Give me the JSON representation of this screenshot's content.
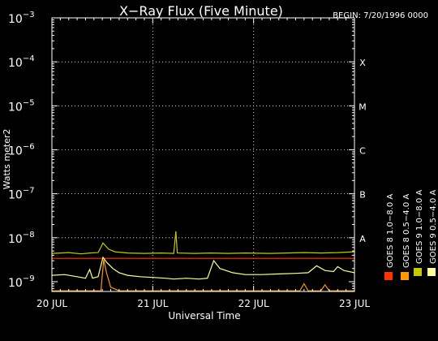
{
  "chart_data": {
    "type": "line",
    "title": "X−Ray Flux (Five Minute)",
    "begin_label": "BEGIN: 7/20/1996 0000",
    "xlabel": "Universal Time",
    "ylabel": "Watts meter2",
    "y_scale": "log",
    "ylim": [
      6e-10,
      0.001
    ],
    "xlim": [
      "1996-07-20",
      "1996-07-23"
    ],
    "x_ticks": [
      {
        "date": "1996-07-20",
        "label": "20 JUL"
      },
      {
        "date": "1996-07-21",
        "label": "21 JUL"
      },
      {
        "date": "1996-07-22",
        "label": "22 JUL"
      },
      {
        "date": "1996-07-23",
        "label": "23 JUL"
      }
    ],
    "y_ticks": [
      {
        "value": 0.001,
        "base": "10",
        "exp": "−3"
      },
      {
        "value": 0.0001,
        "base": "10",
        "exp": "−4"
      },
      {
        "value": 1e-05,
        "base": "10",
        "exp": "−5"
      },
      {
        "value": 1e-06,
        "base": "10",
        "exp": "−6"
      },
      {
        "value": 1e-07,
        "base": "10",
        "exp": "−7"
      },
      {
        "value": 1e-08,
        "base": "10",
        "exp": "−8"
      },
      {
        "value": 1e-09,
        "base": "10",
        "exp": "−9"
      }
    ],
    "flare_classes": [
      {
        "label": "X",
        "value": 0.0001
      },
      {
        "label": "M",
        "value": 1e-05
      },
      {
        "label": "C",
        "value": 1e-06
      },
      {
        "label": "B",
        "value": 1e-07
      },
      {
        "label": "A",
        "value": 1e-08
      }
    ],
    "grid": {
      "horizontal_dotted_at_class_levels": true,
      "vertical_dotted_at_days": true
    },
    "legend_position": "right-side-vertical",
    "legend": [
      {
        "label": "GOES 8  1.0−8.0 A",
        "color": "#ff3300"
      },
      {
        "label": "GOES 8  0.5−4.0 A",
        "color": "#ff9900"
      },
      {
        "label": "GOES 9  1.0−8.0 A",
        "color": "#c8c800"
      },
      {
        "label": "GOES 9  0.5−4.0 A",
        "color": "#ffff99"
      }
    ],
    "series": [
      {
        "name": "GOES 8  1.0−8.0 A",
        "color": "#ff3300",
        "points": [
          [
            "1996-07-20 00:00",
            3.4e-09
          ],
          [
            "1996-07-20 12:00",
            3.4e-09
          ],
          [
            "1996-07-21 00:00",
            3.4e-09
          ],
          [
            "1996-07-21 12:00",
            3.4e-09
          ],
          [
            "1996-07-22 00:00",
            3.4e-09
          ],
          [
            "1996-07-22 12:00",
            3.4e-09
          ],
          [
            "1996-07-23 00:00",
            3.4e-09
          ]
        ]
      },
      {
        "name": "GOES 8  0.5−4.0 A",
        "color": "#ff9900",
        "points": [
          [
            "1996-07-20 00:00",
            6.2e-10
          ],
          [
            "1996-07-20 11:40",
            6.2e-10
          ],
          [
            "1996-07-20 12:20",
            3.2e-09
          ],
          [
            "1996-07-20 13:00",
            1.6e-09
          ],
          [
            "1996-07-20 14:00",
            7.5e-10
          ],
          [
            "1996-07-20 16:00",
            6.2e-10
          ],
          [
            "1996-07-21 00:00",
            6.2e-10
          ],
          [
            "1996-07-21 12:00",
            6.2e-10
          ],
          [
            "1996-07-21 14:00",
            6.2e-10
          ],
          [
            "1996-07-22 00:00",
            6.2e-10
          ],
          [
            "1996-07-22 11:00",
            6.2e-10
          ],
          [
            "1996-07-22 12:00",
            9e-10
          ],
          [
            "1996-07-22 13:00",
            6.2e-10
          ],
          [
            "1996-07-22 16:00",
            6.2e-10
          ],
          [
            "1996-07-22 17:00",
            8.5e-10
          ],
          [
            "1996-07-22 18:00",
            6.2e-10
          ],
          [
            "1996-07-23 00:00",
            6.2e-10
          ]
        ]
      },
      {
        "name": "GOES 9  1.0−8.0 A",
        "color": "#c8c800",
        "points": [
          [
            "1996-07-20 00:00",
            4.4e-09
          ],
          [
            "1996-07-20 04:00",
            4.6e-09
          ],
          [
            "1996-07-20 07:00",
            4.3e-09
          ],
          [
            "1996-07-20 09:00",
            4.5e-09
          ],
          [
            "1996-07-20 11:00",
            4.6e-09
          ],
          [
            "1996-07-20 12:10",
            7.6e-09
          ],
          [
            "1996-07-20 13:30",
            5.5e-09
          ],
          [
            "1996-07-20 15:00",
            4.8e-09
          ],
          [
            "1996-07-20 18:00",
            4.5e-09
          ],
          [
            "1996-07-20 22:00",
            4.4e-09
          ],
          [
            "1996-07-21 02:00",
            4.5e-09
          ],
          [
            "1996-07-21 05:00",
            4.4e-09
          ],
          [
            "1996-07-21 05:30",
            1.4e-08
          ],
          [
            "1996-07-21 05:50",
            4.5e-09
          ],
          [
            "1996-07-21 10:00",
            4.4e-09
          ],
          [
            "1996-07-21 14:00",
            4.5e-09
          ],
          [
            "1996-07-21 18:00",
            4.4e-09
          ],
          [
            "1996-07-21 22:00",
            4.5e-09
          ],
          [
            "1996-07-22 04:00",
            4.4e-09
          ],
          [
            "1996-07-22 08:00",
            4.5e-09
          ],
          [
            "1996-07-22 12:00",
            4.6e-09
          ],
          [
            "1996-07-22 16:00",
            4.5e-09
          ],
          [
            "1996-07-22 20:00",
            4.6e-09
          ],
          [
            "1996-07-23 00:00",
            4.8e-09
          ]
        ]
      },
      {
        "name": "GOES 9  0.5−4.0 A",
        "color": "#ffff99",
        "points": [
          [
            "1996-07-20 00:00",
            1.4e-09
          ],
          [
            "1996-07-20 03:00",
            1.45e-09
          ],
          [
            "1996-07-20 06:00",
            1.3e-09
          ],
          [
            "1996-07-20 08:00",
            1.2e-09
          ],
          [
            "1996-07-20 09:00",
            1.9e-09
          ],
          [
            "1996-07-20 09:40",
            1.2e-09
          ],
          [
            "1996-07-20 11:00",
            1.3e-09
          ],
          [
            "1996-07-20 12:10",
            3.6e-09
          ],
          [
            "1996-07-20 13:00",
            2.8e-09
          ],
          [
            "1996-07-20 14:30",
            2e-09
          ],
          [
            "1996-07-20 16:00",
            1.6e-09
          ],
          [
            "1996-07-20 18:00",
            1.4e-09
          ],
          [
            "1996-07-20 21:00",
            1.3e-09
          ],
          [
            "1996-07-21 00:00",
            1.25e-09
          ],
          [
            "1996-07-21 03:00",
            1.2e-09
          ],
          [
            "1996-07-21 05:00",
            1.15e-09
          ],
          [
            "1996-07-21 08:00",
            1.2e-09
          ],
          [
            "1996-07-21 11:00",
            1.15e-09
          ],
          [
            "1996-07-21 13:00",
            1.2e-09
          ],
          [
            "1996-07-21 14:30",
            3e-09
          ],
          [
            "1996-07-21 16:00",
            2e-09
          ],
          [
            "1996-07-21 19:00",
            1.6e-09
          ],
          [
            "1996-07-21 22:00",
            1.45e-09
          ],
          [
            "1996-07-22 02:00",
            1.45e-09
          ],
          [
            "1996-07-22 06:00",
            1.5e-09
          ],
          [
            "1996-07-22 10:00",
            1.55e-09
          ],
          [
            "1996-07-22 13:00",
            1.6e-09
          ],
          [
            "1996-07-22 15:00",
            2.3e-09
          ],
          [
            "1996-07-22 17:00",
            1.8e-09
          ],
          [
            "1996-07-22 19:00",
            1.7e-09
          ],
          [
            "1996-07-22 20:00",
            2.2e-09
          ],
          [
            "1996-07-22 21:30",
            1.8e-09
          ],
          [
            "1996-07-23 00:00",
            1.6e-09
          ]
        ]
      }
    ]
  }
}
